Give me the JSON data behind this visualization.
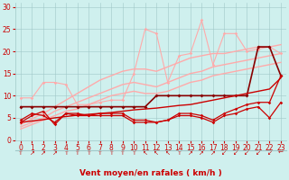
{
  "background_color": "#cff0ee",
  "grid_color": "#a0c8c8",
  "xlabel": "Vent moyen/en rafales ( km/h )",
  "xlabel_color": "#cc0000",
  "xlabel_fontsize": 6.5,
  "tick_color": "#cc0000",
  "tick_fontsize": 5.5,
  "yticks": [
    0,
    5,
    10,
    15,
    20,
    25,
    30
  ],
  "xticks": [
    0,
    1,
    2,
    3,
    4,
    5,
    6,
    7,
    8,
    9,
    10,
    11,
    12,
    13,
    14,
    15,
    16,
    17,
    18,
    19,
    20,
    21,
    22,
    23
  ],
  "xlim": [
    -0.5,
    23.5
  ],
  "ylim": [
    0,
    31
  ],
  "series": [
    {
      "x": [
        0,
        1,
        2,
        3,
        4,
        5,
        6,
        7,
        8,
        9,
        10,
        11,
        12,
        13,
        14,
        15,
        16,
        17,
        18,
        19,
        20,
        21,
        22,
        23
      ],
      "y": [
        9.5,
        9.5,
        13,
        13,
        12.5,
        8,
        8,
        8.5,
        9,
        9,
        15,
        25,
        24,
        13,
        19,
        19.5,
        27,
        17,
        24,
        24,
        20,
        20.5,
        21,
        19.5
      ],
      "color": "#ffaaaa",
      "lw": 0.8,
      "marker": "D",
      "ms": 1.8,
      "zorder": 2
    },
    {
      "x": [
        0,
        1,
        2,
        3,
        4,
        5,
        6,
        7,
        8,
        9,
        10,
        11,
        12,
        13,
        14,
        15,
        16,
        17,
        18,
        19,
        20,
        21,
        22,
        23
      ],
      "y": [
        3.5,
        4.8,
        6.0,
        7.5,
        9.0,
        10.5,
        12.0,
        13.5,
        14.5,
        15.5,
        16.0,
        16.0,
        15.5,
        16.5,
        17.5,
        18.5,
        19.0,
        19.5,
        19.5,
        20.0,
        20.5,
        21.0,
        21.0,
        21.5
      ],
      "color": "#ffaaaa",
      "lw": 1.0,
      "marker": null,
      "ms": 0,
      "zorder": 2
    },
    {
      "x": [
        0,
        1,
        2,
        3,
        4,
        5,
        6,
        7,
        8,
        9,
        10,
        11,
        12,
        13,
        14,
        15,
        16,
        17,
        18,
        19,
        20,
        21,
        22,
        23
      ],
      "y": [
        3.0,
        4.0,
        5.0,
        6.5,
        7.5,
        8.5,
        9.5,
        10.5,
        11.5,
        12.5,
        13.0,
        12.5,
        12.0,
        13.0,
        14.0,
        15.0,
        15.5,
        16.5,
        17.0,
        17.5,
        18.0,
        18.5,
        19.0,
        19.5
      ],
      "color": "#ffaaaa",
      "lw": 1.0,
      "marker": null,
      "ms": 0,
      "zorder": 2
    },
    {
      "x": [
        0,
        1,
        2,
        3,
        4,
        5,
        6,
        7,
        8,
        9,
        10,
        11,
        12,
        13,
        14,
        15,
        16,
        17,
        18,
        19,
        20,
        21,
        22,
        23
      ],
      "y": [
        2.5,
        3.5,
        4.5,
        5.5,
        6.5,
        7.0,
        8.0,
        9.0,
        10.0,
        10.5,
        11.0,
        10.5,
        10.5,
        11.0,
        12.0,
        13.0,
        13.5,
        14.5,
        15.0,
        15.5,
        16.0,
        16.5,
        17.0,
        17.5
      ],
      "color": "#ffaaaa",
      "lw": 1.0,
      "marker": null,
      "ms": 0,
      "zorder": 2
    },
    {
      "x": [
        0,
        1,
        2,
        3,
        4,
        5,
        6,
        7,
        8,
        9,
        10,
        11,
        12,
        13,
        14,
        15,
        16,
        17,
        18,
        19,
        20,
        21,
        22,
        23
      ],
      "y": [
        7.5,
        7.5,
        7.5,
        7.5,
        7.5,
        7.5,
        7.5,
        7.5,
        7.5,
        7.5,
        7.5,
        7.5,
        10,
        10,
        10,
        10,
        10,
        10,
        10,
        10,
        10,
        21,
        21,
        14.5
      ],
      "color": "#880000",
      "lw": 1.2,
      "marker": "D",
      "ms": 2.0,
      "zorder": 3
    },
    {
      "x": [
        0,
        1,
        2,
        3,
        4,
        5,
        6,
        7,
        8,
        9,
        10,
        11,
        12,
        13,
        14,
        15,
        16,
        17,
        18,
        19,
        20,
        21,
        22,
        23
      ],
      "y": [
        4.5,
        6.0,
        5.5,
        4.0,
        6.0,
        6.0,
        5.5,
        6.0,
        6.0,
        6.0,
        4.5,
        4.5,
        4.0,
        4.5,
        6.0,
        6.0,
        5.5,
        4.5,
        6.0,
        7.0,
        8.0,
        8.5,
        8.5,
        14.5
      ],
      "color": "#cc0000",
      "lw": 0.9,
      "marker": "D",
      "ms": 1.8,
      "zorder": 4
    },
    {
      "x": [
        0,
        1,
        2,
        3,
        4,
        5,
        6,
        7,
        8,
        9,
        10,
        11,
        12,
        13,
        14,
        15,
        16,
        17,
        18,
        19,
        20,
        21,
        22,
        23
      ],
      "y": [
        4.0,
        5.5,
        6.5,
        3.5,
        6.0,
        5.5,
        5.5,
        5.5,
        5.5,
        5.5,
        4.0,
        4.0,
        4.0,
        4.5,
        5.5,
        5.5,
        5.0,
        4.0,
        5.5,
        6.0,
        7.0,
        7.5,
        5.0,
        8.5
      ],
      "color": "#cc0000",
      "lw": 0.9,
      "marker": "D",
      "ms": 1.8,
      "zorder": 4
    },
    {
      "x": [
        0,
        1,
        2,
        3,
        4,
        5,
        6,
        7,
        8,
        9,
        10,
        11,
        12,
        13,
        14,
        15,
        16,
        17,
        18,
        19,
        20,
        21,
        22,
        23
      ],
      "y": [
        4.0,
        4.3,
        4.6,
        5.0,
        5.3,
        5.6,
        5.8,
        6.0,
        6.2,
        6.5,
        6.8,
        7.0,
        7.2,
        7.5,
        7.8,
        8.0,
        8.5,
        9.0,
        9.5,
        10.0,
        10.5,
        11.0,
        11.5,
        14.0
      ],
      "color": "#cc0000",
      "lw": 1.0,
      "marker": null,
      "ms": 0,
      "zorder": 3
    }
  ],
  "arrow_symbols": [
    "↑",
    "↗",
    "↗",
    "↗",
    "↑",
    "↑",
    "↑",
    "↑",
    "↑",
    "↑",
    "↑",
    "↖",
    "↖",
    "↖",
    "↑",
    "↗",
    "↗",
    "↗",
    "↙",
    "↙",
    "↙",
    "↙",
    "↙",
    "←"
  ],
  "arrow_color": "#cc0000",
  "arrow_fontsize": 5.0
}
